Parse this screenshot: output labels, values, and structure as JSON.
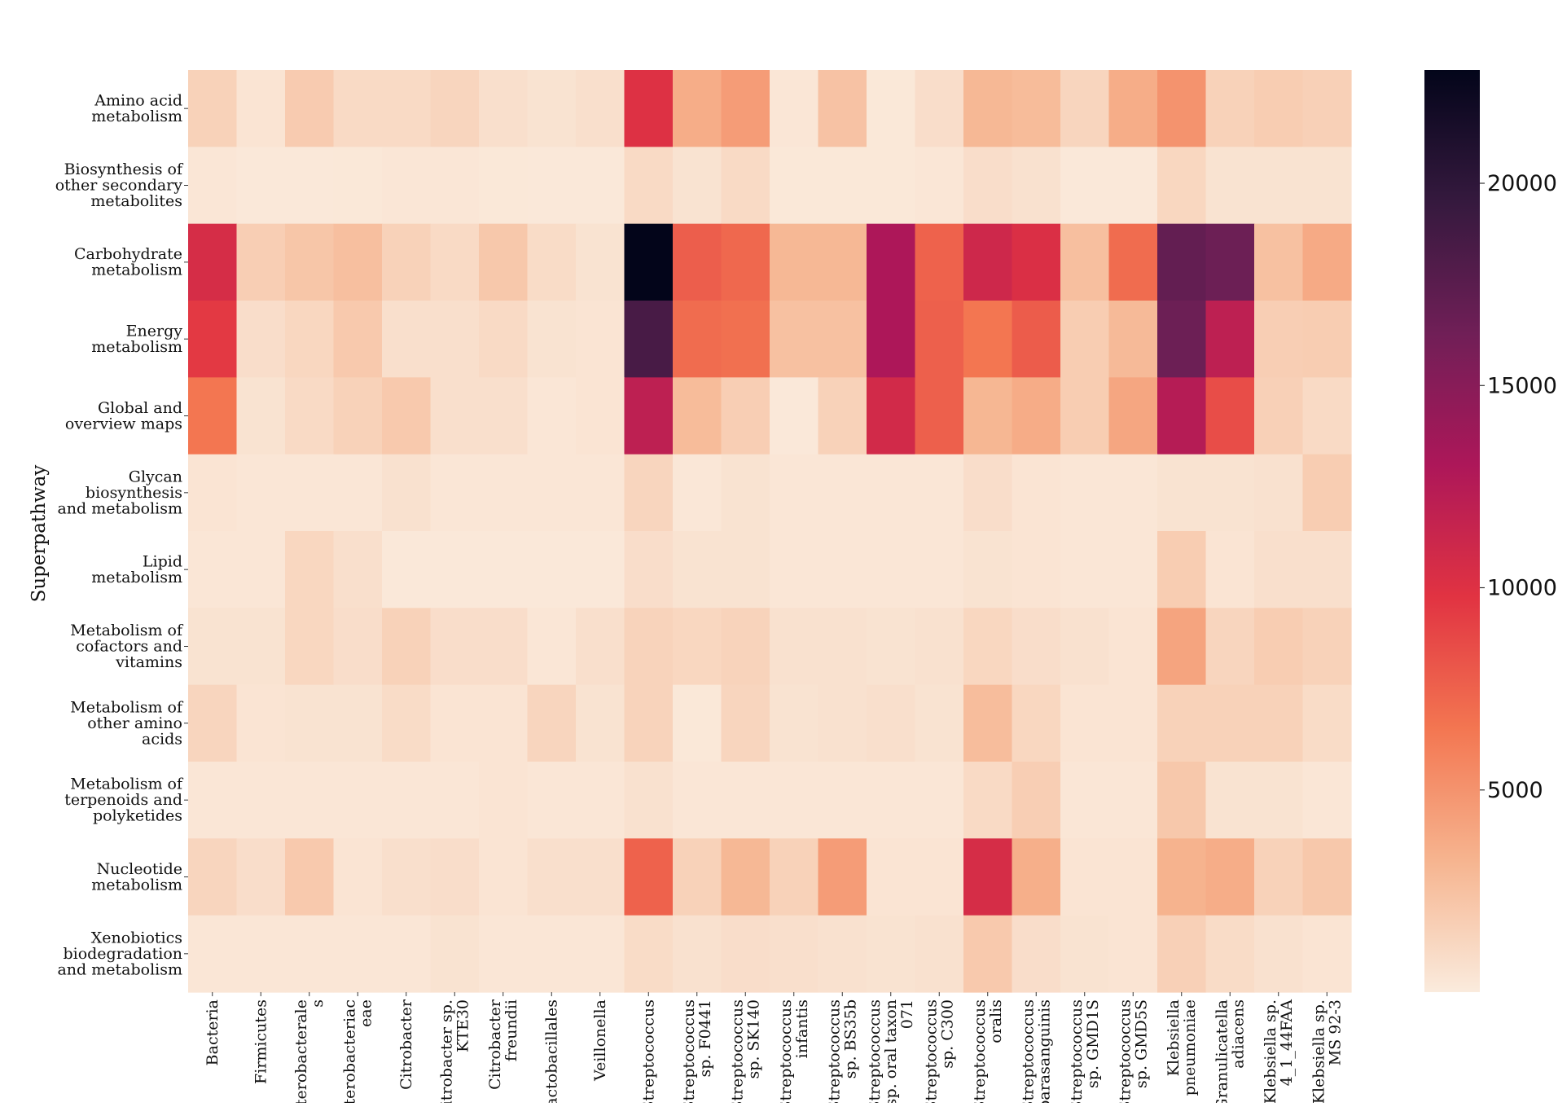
{
  "chart_data": {
    "type": "heatmap",
    "title": "",
    "xlabel": "",
    "ylabel": "Superpathway",
    "colormap": "rocket_r",
    "colormap_stops": [
      "#faebdd",
      "#f6b48f",
      "#f37651",
      "#e13342",
      "#ad1759",
      "#701f57",
      "#35193e",
      "#03051a"
    ],
    "vmin": 0,
    "vmax": 22800,
    "colorbar_ticks": [
      5000,
      10000,
      15000,
      20000
    ],
    "colorbar_tick_labels": [
      "5000",
      "10000",
      "15000",
      "20000"
    ],
    "rows": [
      [
        "Amino acid",
        "metabolism"
      ],
      [
        "Biosynthesis of",
        "other secondary",
        "metabolites"
      ],
      [
        "Carbohydrate",
        "metabolism"
      ],
      [
        "Energy",
        "metabolism"
      ],
      [
        "Global and",
        "overview maps"
      ],
      [
        "Glycan",
        "biosynthesis",
        "and metabolism"
      ],
      [
        "Lipid",
        "metabolism"
      ],
      [
        "Metabolism of",
        "cofactors and",
        "vitamins"
      ],
      [
        "Metabolism of",
        "other amino",
        "acids"
      ],
      [
        "Metabolism of",
        "terpenoids and",
        "polyketides"
      ],
      [
        "Nucleotide",
        "metabolism"
      ],
      [
        "Xenobiotics",
        "biodegradation",
        "and metabolism"
      ]
    ],
    "columns": [
      [
        "Bacteria"
      ],
      [
        "Firmicutes"
      ],
      [
        "Enterobacterale",
        "s"
      ],
      [
        "Enterobacteriac",
        "eae"
      ],
      [
        "Citrobacter"
      ],
      [
        "Citrobacter sp.",
        "KTE30"
      ],
      [
        "Citrobacter",
        "freundii"
      ],
      [
        "Lactobacillales"
      ],
      [
        "Veillonella"
      ],
      [
        "Streptococcus"
      ],
      [
        "Streptococcus",
        "sp. F0441"
      ],
      [
        "Streptococcus",
        "sp. SK140"
      ],
      [
        "Streptococcus",
        "infantis"
      ],
      [
        "Streptococcus",
        "sp. BS35b"
      ],
      [
        "Streptococcus",
        "sp. oral taxon",
        "071"
      ],
      [
        "Streptococcus",
        "sp. C300"
      ],
      [
        "Streptococcus",
        "oralis"
      ],
      [
        "Streptococcus",
        "parasanguinis"
      ],
      [
        "Streptococcus",
        "sp. GMD1S"
      ],
      [
        "Streptococcus",
        "sp. GMD5S"
      ],
      [
        "Klebsiella",
        "pneumoniae"
      ],
      [
        "Granulicatella",
        "adiacens"
      ],
      [
        "Klebsiella sp.",
        "4_1_44FAA"
      ],
      [
        "Klebsiella sp.",
        "MS 92-3"
      ]
    ],
    "values": [
      [
        1500,
        400,
        1900,
        1000,
        1000,
        1300,
        700,
        500,
        700,
        10000,
        3600,
        4500,
        300,
        2400,
        200,
        800,
        3000,
        2800,
        1300,
        3600,
        5000,
        1500,
        1800,
        1600
      ],
      [
        300,
        150,
        150,
        200,
        300,
        300,
        200,
        150,
        150,
        1000,
        500,
        1000,
        200,
        200,
        200,
        300,
        800,
        600,
        150,
        150,
        1200,
        500,
        500,
        500
      ],
      [
        10500,
        1700,
        2200,
        2600,
        1500,
        1000,
        2100,
        900,
        500,
        22800,
        7700,
        7200,
        3000,
        3000,
        13000,
        7500,
        11000,
        10200,
        2600,
        7000,
        17000,
        16500,
        2500,
        3800
      ],
      [
        9500,
        800,
        1200,
        2000,
        700,
        700,
        1000,
        500,
        400,
        18500,
        7000,
        6800,
        2500,
        2500,
        13000,
        7600,
        6500,
        7800,
        1800,
        2900,
        16500,
        12000,
        1700,
        1800
      ],
      [
        6500,
        500,
        1000,
        1500,
        2000,
        700,
        700,
        300,
        400,
        12000,
        2800,
        1700,
        150,
        1500,
        10800,
        7600,
        3100,
        3700,
        1800,
        4000,
        12500,
        8500,
        1600,
        1000
      ],
      [
        400,
        300,
        300,
        300,
        600,
        300,
        300,
        300,
        300,
        1300,
        250,
        500,
        300,
        300,
        300,
        300,
        800,
        400,
        300,
        300,
        500,
        500,
        600,
        1800
      ],
      [
        300,
        300,
        1200,
        700,
        150,
        150,
        150,
        150,
        150,
        800,
        500,
        500,
        300,
        300,
        300,
        300,
        500,
        400,
        300,
        300,
        1800,
        400,
        700,
        700
      ],
      [
        500,
        500,
        1200,
        800,
        1500,
        800,
        800,
        300,
        700,
        1400,
        1200,
        1400,
        600,
        600,
        500,
        600,
        1200,
        800,
        600,
        400,
        4100,
        1300,
        1800,
        1500
      ],
      [
        1300,
        400,
        500,
        500,
        900,
        400,
        400,
        1300,
        500,
        1400,
        200,
        1300,
        500,
        600,
        700,
        500,
        2700,
        1200,
        400,
        400,
        1500,
        1500,
        1500,
        900
      ],
      [
        300,
        300,
        300,
        300,
        300,
        300,
        400,
        300,
        300,
        600,
        300,
        300,
        300,
        300,
        300,
        300,
        1000,
        1700,
        300,
        300,
        2100,
        500,
        500,
        300
      ],
      [
        1300,
        800,
        2000,
        400,
        700,
        800,
        400,
        700,
        700,
        7500,
        1500,
        3000,
        1500,
        4500,
        400,
        400,
        10500,
        3500,
        400,
        400,
        3300,
        3600,
        1500,
        2100
      ],
      [
        300,
        300,
        300,
        300,
        300,
        500,
        300,
        300,
        300,
        900,
        600,
        800,
        700,
        600,
        500,
        600,
        2000,
        800,
        500,
        400,
        1600,
        900,
        600,
        400
      ]
    ]
  }
}
